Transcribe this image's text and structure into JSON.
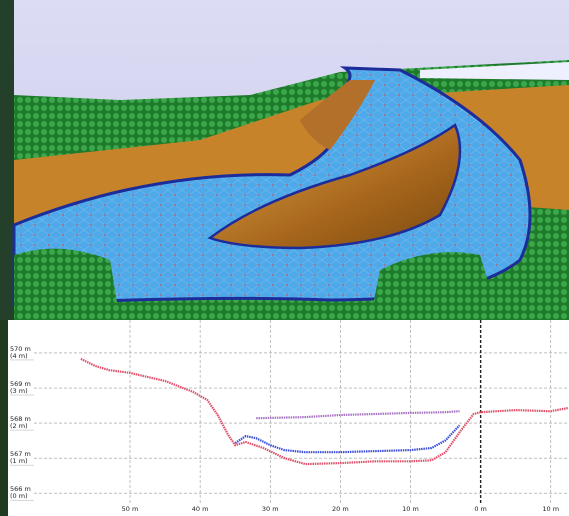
{
  "chart_data": {
    "type": "line",
    "xlim": [
      67.4,
      -12.6
    ],
    "xticks": [
      {
        "value": 50,
        "label": "50 m"
      },
      {
        "value": 40,
        "label": "40 m"
      },
      {
        "value": 30,
        "label": "30 m"
      },
      {
        "value": 20,
        "label": "20 m"
      },
      {
        "value": 10,
        "label": "10 m"
      },
      {
        "value": 0,
        "label": "0 m"
      },
      {
        "value": -10,
        "label": "10 m"
      }
    ],
    "ylim": [
      565.35,
      570.94
    ],
    "yticks": [
      {
        "value": 570,
        "label": "570 m"
      },
      {
        "value": 569,
        "label": "569 m"
      },
      {
        "value": 568,
        "label": "568 m"
      },
      {
        "value": 567,
        "label": "567 m"
      },
      {
        "value": 566,
        "label": "566 m"
      }
    ],
    "y2lim": [
      -0.65,
      4.94
    ],
    "y2ticks": [
      {
        "value": 4,
        "label": "(4 m)"
      },
      {
        "value": 3,
        "label": "(3 m)"
      },
      {
        "value": 2,
        "label": "(2 m)"
      },
      {
        "value": 1,
        "label": "(1 m)"
      },
      {
        "value": 0,
        "label": "(0 m)"
      }
    ],
    "grid": true,
    "series": [
      {
        "color": "#a874c2",
        "x": [
          32,
          25,
          20,
          15,
          10,
          5,
          3
        ],
        "values": [
          568.14,
          568.17,
          568.23,
          568.26,
          568.29,
          568.31,
          568.34
        ]
      },
      {
        "color": "#e0506a",
        "x": [
          57,
          55,
          53,
          50,
          45,
          41,
          39,
          37.5,
          36,
          35,
          33.5,
          31,
          28,
          25,
          20,
          15,
          10,
          7,
          5,
          3,
          1,
          0,
          -5,
          -10,
          -12.5
        ],
        "values": [
          569.83,
          569.63,
          569.51,
          569.43,
          569.2,
          568.89,
          568.66,
          568.23,
          567.66,
          567.37,
          567.46,
          567.29,
          567.0,
          566.83,
          566.86,
          566.91,
          566.91,
          566.94,
          567.17,
          567.74,
          568.26,
          568.31,
          568.37,
          568.34,
          568.43
        ]
      },
      {
        "color": "#3b4fd8",
        "x": [
          35,
          33.5,
          32,
          30,
          28,
          25,
          20,
          15,
          10,
          7,
          5,
          3
        ],
        "values": [
          567.43,
          567.63,
          567.57,
          567.37,
          567.23,
          567.17,
          567.17,
          567.2,
          567.23,
          567.29,
          567.51,
          567.94
        ]
      }
    ]
  }
}
